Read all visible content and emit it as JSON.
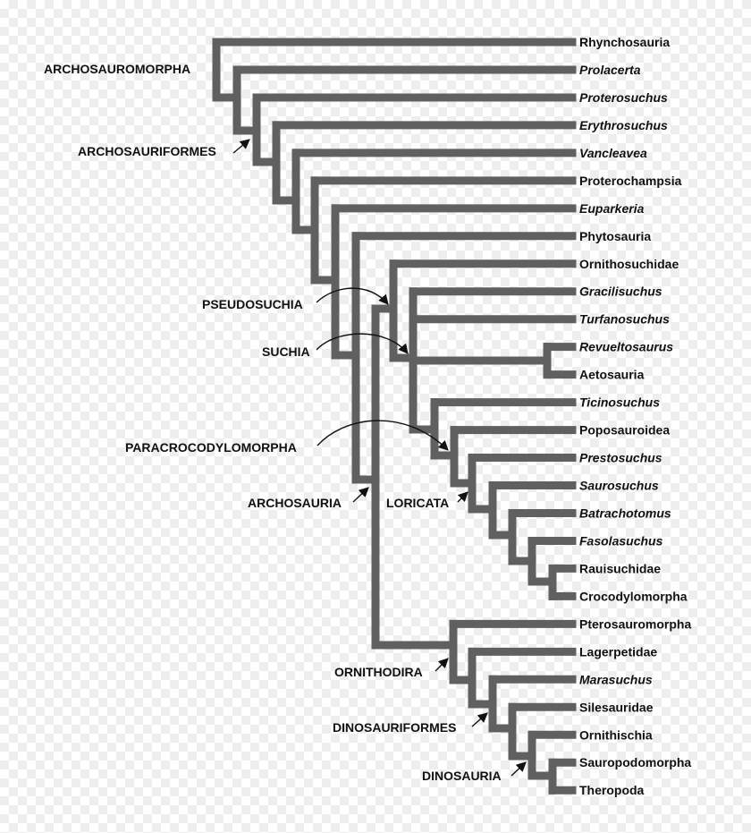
{
  "colors": {
    "branch": "#606060",
    "text": "#111111",
    "arrow": "#111111"
  },
  "taxa": [
    {
      "name": "Rhynchosauria",
      "italic": false
    },
    {
      "name": "Prolacerta",
      "italic": true
    },
    {
      "name": "Proterosuchus",
      "italic": true
    },
    {
      "name": "Erythrosuchus",
      "italic": true
    },
    {
      "name": "Vancleavea",
      "italic": true
    },
    {
      "name": "Proterochampsia",
      "italic": false
    },
    {
      "name": "Euparkeria",
      "italic": true
    },
    {
      "name": "Phytosauria",
      "italic": false
    },
    {
      "name": "Ornithosuchidae",
      "italic": false
    },
    {
      "name": "Gracilisuchus",
      "italic": true
    },
    {
      "name": "Turfanosuchus",
      "italic": true
    },
    {
      "name": "Revueltosaurus",
      "italic": true
    },
    {
      "name": "Aetosauria",
      "italic": false
    },
    {
      "name": "Ticinosuchus",
      "italic": true
    },
    {
      "name": "Poposauroidea",
      "italic": false
    },
    {
      "name": "Prestosuchus",
      "italic": true
    },
    {
      "name": "Saurosuchus",
      "italic": true
    },
    {
      "name": "Batrachotomus",
      "italic": true
    },
    {
      "name": "Fasolasuchus",
      "italic": true
    },
    {
      "name": "Rauisuchidae",
      "italic": false
    },
    {
      "name": "Crocodylomorpha",
      "italic": false
    },
    {
      "name": "Pterosauromorpha",
      "italic": false
    },
    {
      "name": "Lagerpetidae",
      "italic": false
    },
    {
      "name": "Marasuchus",
      "italic": true
    },
    {
      "name": "Silesauridae",
      "italic": false
    },
    {
      "name": "Ornithischia",
      "italic": false
    },
    {
      "name": "Sauropodomorpha",
      "italic": false
    },
    {
      "name": "Theropoda",
      "italic": false
    }
  ],
  "clades": {
    "archosauromorpha": "ARCHOSAUROMORPHA",
    "archosauriformes": "ARCHOSAURIFORMES",
    "pseudosuchia": "PSEUDOSUCHIA",
    "suchia": "SUCHIA",
    "paracrocodylomorpha": "PARACROCODYLOMORPHA",
    "archosauria": "ARCHOSAURIA",
    "loricata": "LORICATA",
    "ornithodira": "ORNITHODIRA",
    "dinosauriformes": "DINOSAURIFORMES",
    "dinosauria": "DINOSAURIA"
  }
}
